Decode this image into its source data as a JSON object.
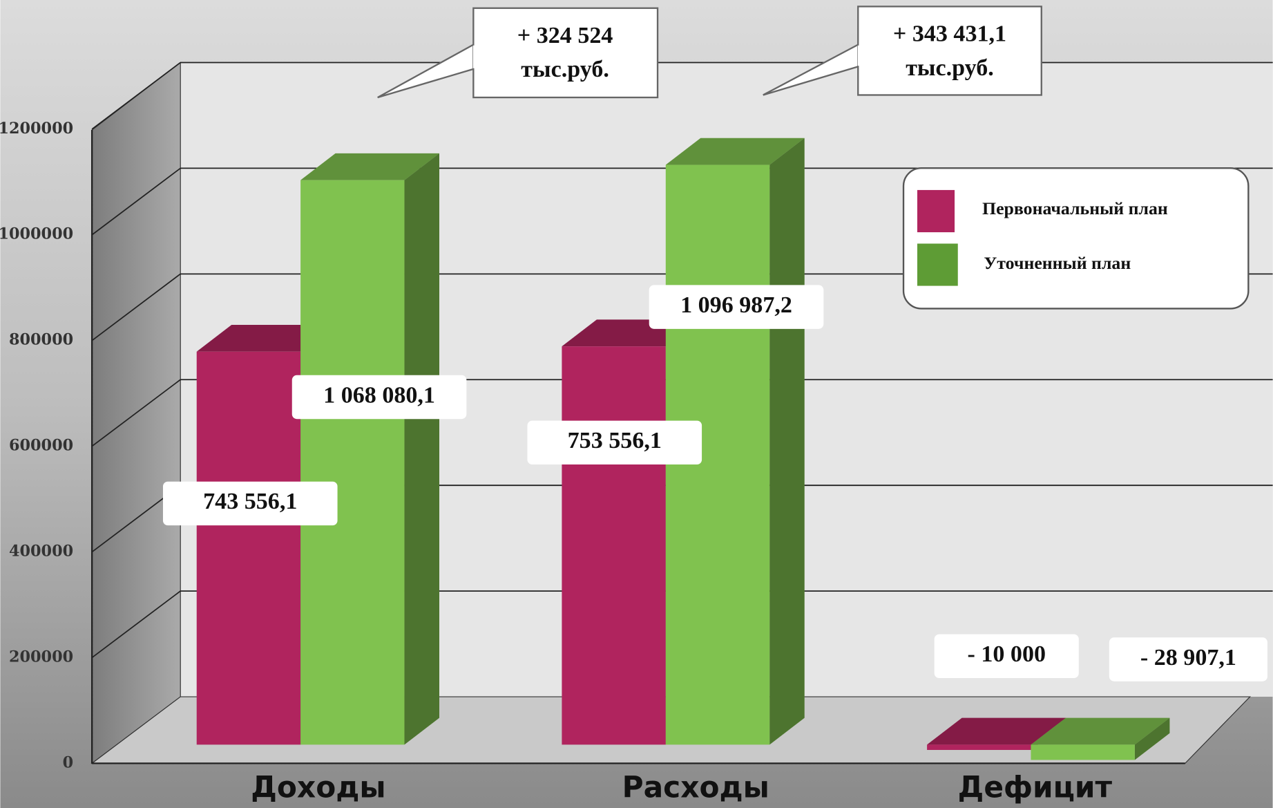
{
  "chart_data": {
    "type": "bar3d",
    "categories": [
      "Доходы",
      "Расходы",
      "Дефицит"
    ],
    "series": [
      {
        "name": "Первоначальный план",
        "color": "#b0245e",
        "values": [
          743556.1,
          753556.1,
          -10000
        ],
        "value_labels": [
          "743 556,1",
          "753 556,1",
          "- 10 000"
        ]
      },
      {
        "name": "Уточненный план",
        "color": "#80c24f",
        "values": [
          1068080.1,
          1096987.2,
          -28907.1
        ],
        "value_labels": [
          "1 068 080,1",
          "1 096 987,2",
          "- 28 907,1"
        ]
      }
    ],
    "ylim": [
      0,
      1200000
    ],
    "yticks": [
      0,
      200000,
      400000,
      600000,
      800000,
      1000000,
      1200000
    ],
    "grid": true,
    "legend": "upper right",
    "annotations": [
      {
        "lines": [
          "+ 324 524",
          "тыс.руб."
        ]
      },
      {
        "lines": [
          "+ 343 431,1",
          "тыс.руб."
        ]
      }
    ]
  }
}
